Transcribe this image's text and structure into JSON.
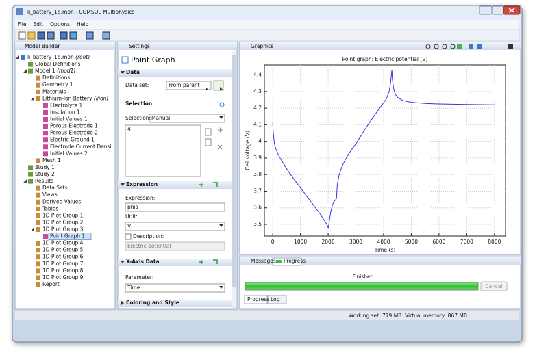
{
  "window": {
    "title": "li_battery_1d.mph - COMSOL Multiphysics"
  },
  "menu": [
    "File",
    "Edit",
    "Options",
    "Help"
  ],
  "model_builder": {
    "tab": "Model Builder",
    "tree": [
      {
        "label": "li_battery_1d.mph",
        "tag": "(root)",
        "children": [
          {
            "label": "Global Definitions"
          },
          {
            "label": "Model 1",
            "tag": "(mod1)",
            "children": [
              {
                "label": "Definitions"
              },
              {
                "label": "Geometry 1"
              },
              {
                "label": "Materials"
              },
              {
                "label": "Lithium-Ion Battery",
                "tag": "(liion)",
                "children": [
                  {
                    "label": "Electrolyte 1"
                  },
                  {
                    "label": "Insulation 1"
                  },
                  {
                    "label": "Initial Values 1"
                  },
                  {
                    "label": "Porous Electrode 1"
                  },
                  {
                    "label": "Porous Electrode 2"
                  },
                  {
                    "label": "Electric Ground 1"
                  },
                  {
                    "label": "Electrode Current Densi"
                  },
                  {
                    "label": "Initial Values 2"
                  }
                ]
              },
              {
                "label": "Mesh 1"
              }
            ]
          },
          {
            "label": "Study 1"
          },
          {
            "label": "Study 2"
          },
          {
            "label": "Results",
            "children": [
              {
                "label": "Data Sets"
              },
              {
                "label": "Views"
              },
              {
                "label": "Derived Values"
              },
              {
                "label": "Tables"
              },
              {
                "label": "1D Plot Group 1"
              },
              {
                "label": "1D Plot Group 2"
              },
              {
                "label": "1D Plot Group 3",
                "children": [
                  {
                    "label": "Point Graph 1",
                    "selected": true
                  }
                ]
              },
              {
                "label": "1D Plot Group 4"
              },
              {
                "label": "1D Plot Group 5"
              },
              {
                "label": "1D Plot Group 6"
              },
              {
                "label": "1D Plot Group 7"
              },
              {
                "label": "1D Plot Group 8"
              },
              {
                "label": "1D Plot Group 9"
              },
              {
                "label": "Report"
              }
            ]
          }
        ]
      }
    ]
  },
  "settings": {
    "tab": "Settings",
    "heading": "Point Graph",
    "data": {
      "section": "Data",
      "dataset_label": "Data set:",
      "dataset": "From parent"
    },
    "selection": {
      "section": "Selection",
      "label": "Selection:",
      "value": "Manual",
      "items": [
        "4"
      ]
    },
    "expression": {
      "section": "Expression",
      "expression_label": "Expression:",
      "expression": "phis",
      "unit_label": "Unit:",
      "unit": "V",
      "description_label": "Description:",
      "description": "Electric potential"
    },
    "x_axis": {
      "section": "X-Axis Data",
      "parameter_label": "Parameter:",
      "parameter": "Time"
    },
    "coloring": {
      "section": "Coloring and Style"
    }
  },
  "graphics": {
    "tab": "Graphics",
    "plot": {
      "type": "line",
      "title": "Point graph: Electric potential (V)",
      "xlabel": "Time (s)",
      "ylabel": "Cell voltage (V)",
      "x": [
        0,
        20,
        60,
        100,
        200,
        300,
        450,
        600,
        800,
        1000,
        1250,
        1500,
        1700,
        1900,
        1980,
        2010,
        2050,
        2100,
        2150,
        2200,
        2250,
        2300,
        2330,
        2400,
        2500,
        2700,
        3000,
        3300,
        3600,
        3900,
        4100,
        4200,
        4250,
        4300,
        4320,
        4360,
        4420,
        4500,
        4700,
        5000,
        5500,
        6000,
        7000,
        8000
      ],
      "values": [
        4.11,
        4.05,
        3.99,
        3.96,
        3.92,
        3.89,
        3.85,
        3.81,
        3.765,
        3.72,
        3.665,
        3.61,
        3.565,
        3.515,
        3.49,
        3.475,
        3.53,
        3.58,
        3.615,
        3.635,
        3.645,
        3.655,
        3.74,
        3.8,
        3.85,
        3.915,
        3.985,
        4.065,
        4.14,
        4.21,
        4.255,
        4.3,
        4.35,
        4.43,
        4.37,
        4.32,
        4.285,
        4.265,
        4.245,
        4.235,
        4.228,
        4.225,
        4.222,
        4.22
      ],
      "color": "#3333dd",
      "xlim": [
        -300,
        8400
      ],
      "ylim": [
        3.43,
        4.46
      ],
      "xticks": [
        0,
        1000,
        2000,
        3000,
        4000,
        5000,
        6000,
        7000,
        8000
      ],
      "yticks": [
        3.5,
        3.6,
        3.7,
        3.8,
        3.9,
        4,
        4.1,
        4.2,
        4.3,
        4.4
      ],
      "grid": true
    }
  },
  "messages": {
    "tabs": [
      "Messages",
      "Progress"
    ],
    "status": "Finished",
    "cancel": "Cancel",
    "bottom_tabs": [
      "Progress",
      "Log"
    ]
  },
  "status_bar": "Working set: 779 MB  Virtual memory: 867 MB"
}
